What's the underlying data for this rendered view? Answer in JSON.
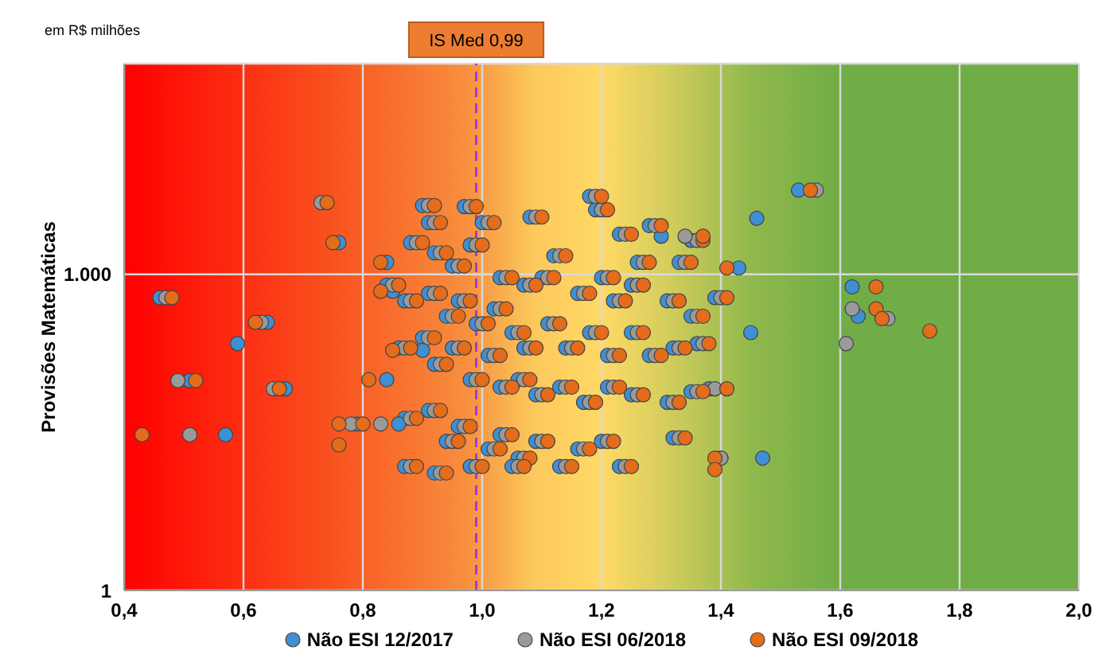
{
  "chart_data": {
    "type": "scatter",
    "ylabel": "Provisões Matemáticas",
    "annotations": [
      "em R$ milhões"
    ],
    "xlim": [
      0.4,
      2.0
    ],
    "xticks": [
      {
        "value": 0.4,
        "label": "0,4"
      },
      {
        "value": 0.6,
        "label": "0,6"
      },
      {
        "value": 0.8,
        "label": "0,8"
      },
      {
        "value": 1.0,
        "label": "1,0"
      },
      {
        "value": 1.2,
        "label": "1,2"
      },
      {
        "value": 1.4,
        "label": "1,4"
      },
      {
        "value": 1.6,
        "label": "1,6"
      },
      {
        "value": 1.8,
        "label": "1,8"
      },
      {
        "value": 2.0,
        "label": "2,0"
      }
    ],
    "ylim": [
      1,
      100000
    ],
    "yticks": [
      {
        "value": 1,
        "label": "1"
      },
      {
        "value": 1000,
        "label": "1.000"
      }
    ],
    "log": "y",
    "grid": true,
    "legend": "bottom",
    "marker": "circle",
    "ref_lines": [
      {
        "axis": "x",
        "value": 0.99,
        "label": "IS Med 0,99",
        "color": "#9b3fd4",
        "line_style": "dashed"
      }
    ],
    "series": [
      {
        "name": "Não ESI 12/2017",
        "color": "#3f8fd2",
        "x": [
          0.9,
          0.91,
          0.97,
          1.0,
          1.08,
          1.12,
          1.18,
          1.19,
          1.23,
          1.26,
          1.28,
          1.33,
          1.35,
          0.88,
          0.92,
          0.95,
          0.98,
          1.03,
          1.07,
          1.1,
          1.16,
          1.2,
          1.22,
          1.25,
          1.31,
          1.35,
          1.39,
          0.84,
          0.87,
          0.91,
          0.94,
          0.96,
          0.99,
          1.02,
          1.05,
          1.07,
          1.11,
          1.14,
          1.18,
          1.21,
          1.25,
          1.28,
          1.32,
          1.36,
          0.86,
          0.9,
          0.92,
          0.95,
          0.98,
          1.01,
          1.03,
          1.06,
          1.09,
          1.13,
          1.17,
          1.21,
          1.25,
          1.31,
          1.35,
          0.87,
          0.91,
          0.94,
          0.96,
          1.01,
          1.03,
          1.06,
          1.09,
          1.13,
          1.16,
          1.2,
          1.23,
          0.87,
          0.92,
          0.98,
          1.05,
          0.46,
          0.51,
          0.57,
          0.59,
          0.76,
          0.64,
          0.67,
          0.79,
          0.86,
          0.84,
          0.9,
          0.84,
          0.85,
          1.53,
          1.46,
          1.3,
          1.43,
          1.62,
          1.63,
          1.45,
          1.38,
          1.4,
          1.47,
          1.32
        ],
        "values": [
          4500,
          3100,
          4400,
          3100,
          3500,
          1500,
          5500,
          4100,
          2400,
          1300,
          2900,
          1300,
          2100,
          2000,
          1600,
          1200,
          1900,
          930,
          790,
          930,
          660,
          930,
          560,
          790,
          560,
          400,
          600,
          790,
          560,
          660,
          400,
          560,
          340,
          470,
          280,
          200,
          340,
          200,
          280,
          170,
          280,
          170,
          200,
          220,
          200,
          250,
          140,
          200,
          100,
          170,
          85,
          100,
          72,
          85,
          61,
          85,
          72,
          61,
          77,
          43,
          51,
          26,
          36,
          22,
          30,
          18,
          26,
          15,
          22,
          26,
          15,
          15,
          13,
          15,
          15,
          600,
          98,
          30,
          220,
          2000,
          350,
          82,
          38,
          38,
          100,
          190,
          1300,
          690,
          6300,
          3400,
          2300,
          1150,
          760,
          400,
          280,
          82,
          18,
          18,
          28
        ]
      },
      {
        "name": "Não ESI 06/2018",
        "color": "#9a9a9a",
        "x": [
          0.91,
          0.92,
          0.98,
          1.01,
          1.09,
          1.13,
          1.19,
          1.2,
          1.24,
          1.27,
          1.29,
          1.34,
          1.36,
          0.89,
          0.93,
          0.96,
          0.99,
          1.04,
          1.08,
          1.11,
          1.17,
          1.21,
          1.23,
          1.26,
          1.32,
          1.36,
          1.4,
          0.85,
          0.88,
          0.92,
          0.95,
          0.97,
          1.0,
          1.03,
          1.06,
          1.08,
          1.12,
          1.15,
          1.19,
          1.22,
          1.26,
          1.29,
          1.33,
          1.37,
          0.87,
          0.91,
          0.93,
          0.96,
          0.99,
          1.02,
          1.04,
          1.07,
          1.1,
          1.14,
          1.18,
          1.22,
          1.26,
          1.32,
          1.36,
          0.88,
          0.92,
          0.95,
          0.97,
          1.02,
          1.04,
          1.07,
          1.1,
          1.14,
          1.17,
          1.21,
          1.24,
          0.88,
          0.93,
          0.99,
          1.06,
          0.47,
          0.49,
          0.51,
          0.73,
          0.63,
          0.65,
          0.78,
          0.83,
          1.56,
          1.34,
          1.62,
          1.68,
          1.61,
          1.39,
          1.4,
          1.33
        ],
        "values": [
          4500,
          3100,
          4400,
          3100,
          3500,
          1500,
          5500,
          4100,
          2400,
          1300,
          2900,
          1300,
          2100,
          2000,
          1600,
          1200,
          1900,
          930,
          790,
          930,
          660,
          930,
          560,
          790,
          560,
          400,
          600,
          790,
          560,
          660,
          400,
          560,
          340,
          470,
          280,
          200,
          340,
          200,
          280,
          170,
          280,
          170,
          200,
          220,
          200,
          250,
          140,
          200,
          100,
          170,
          85,
          100,
          72,
          85,
          61,
          85,
          72,
          61,
          77,
          43,
          51,
          26,
          36,
          22,
          30,
          18,
          26,
          15,
          22,
          26,
          15,
          15,
          13,
          15,
          15,
          600,
          98,
          30,
          4800,
          350,
          82,
          38,
          38,
          6300,
          2300,
          470,
          380,
          220,
          82,
          18,
          28
        ]
      },
      {
        "name": "Não ESI 09/2018",
        "color": "#e46c1a",
        "x": [
          0.92,
          0.93,
          0.99,
          1.02,
          1.1,
          1.14,
          1.2,
          1.21,
          1.25,
          1.28,
          1.3,
          1.35,
          1.37,
          0.9,
          0.94,
          0.97,
          1.0,
          1.05,
          1.09,
          1.12,
          1.18,
          1.22,
          1.24,
          1.27,
          1.33,
          1.37,
          1.41,
          0.86,
          0.89,
          0.93,
          0.96,
          0.98,
          1.01,
          1.04,
          1.07,
          1.09,
          1.13,
          1.16,
          1.2,
          1.23,
          1.27,
          1.3,
          1.34,
          1.38,
          0.88,
          0.92,
          0.94,
          0.97,
          1.0,
          1.03,
          1.05,
          1.08,
          1.11,
          1.15,
          1.19,
          1.23,
          1.27,
          1.33,
          1.37,
          0.89,
          0.93,
          0.96,
          0.98,
          1.03,
          1.05,
          1.08,
          1.11,
          1.15,
          1.18,
          1.22,
          1.25,
          0.89,
          0.94,
          1.0,
          1.07,
          0.48,
          0.52,
          0.43,
          0.74,
          0.75,
          0.62,
          0.66,
          0.76,
          0.8,
          0.76,
          0.81,
          0.85,
          0.83,
          0.83,
          1.55,
          1.37,
          1.41,
          1.66,
          1.66,
          1.67,
          1.75,
          1.41,
          1.39,
          1.39,
          1.34
        ],
        "values": [
          4500,
          3100,
          4400,
          3100,
          3500,
          1500,
          5500,
          4100,
          2400,
          1300,
          2900,
          1300,
          2100,
          2000,
          1600,
          1200,
          1900,
          930,
          790,
          930,
          660,
          930,
          560,
          790,
          560,
          400,
          600,
          790,
          560,
          660,
          400,
          560,
          340,
          470,
          280,
          200,
          340,
          200,
          280,
          170,
          280,
          170,
          200,
          220,
          200,
          250,
          140,
          200,
          100,
          170,
          85,
          100,
          72,
          85,
          61,
          85,
          72,
          61,
          77,
          43,
          51,
          26,
          36,
          22,
          30,
          18,
          26,
          15,
          22,
          26,
          15,
          15,
          13,
          15,
          15,
          600,
          98,
          30,
          4800,
          2000,
          350,
          82,
          38,
          38,
          24,
          100,
          190,
          1300,
          690,
          6300,
          2300,
          1150,
          760,
          470,
          380,
          290,
          82,
          18,
          14,
          28
        ]
      }
    ]
  }
}
